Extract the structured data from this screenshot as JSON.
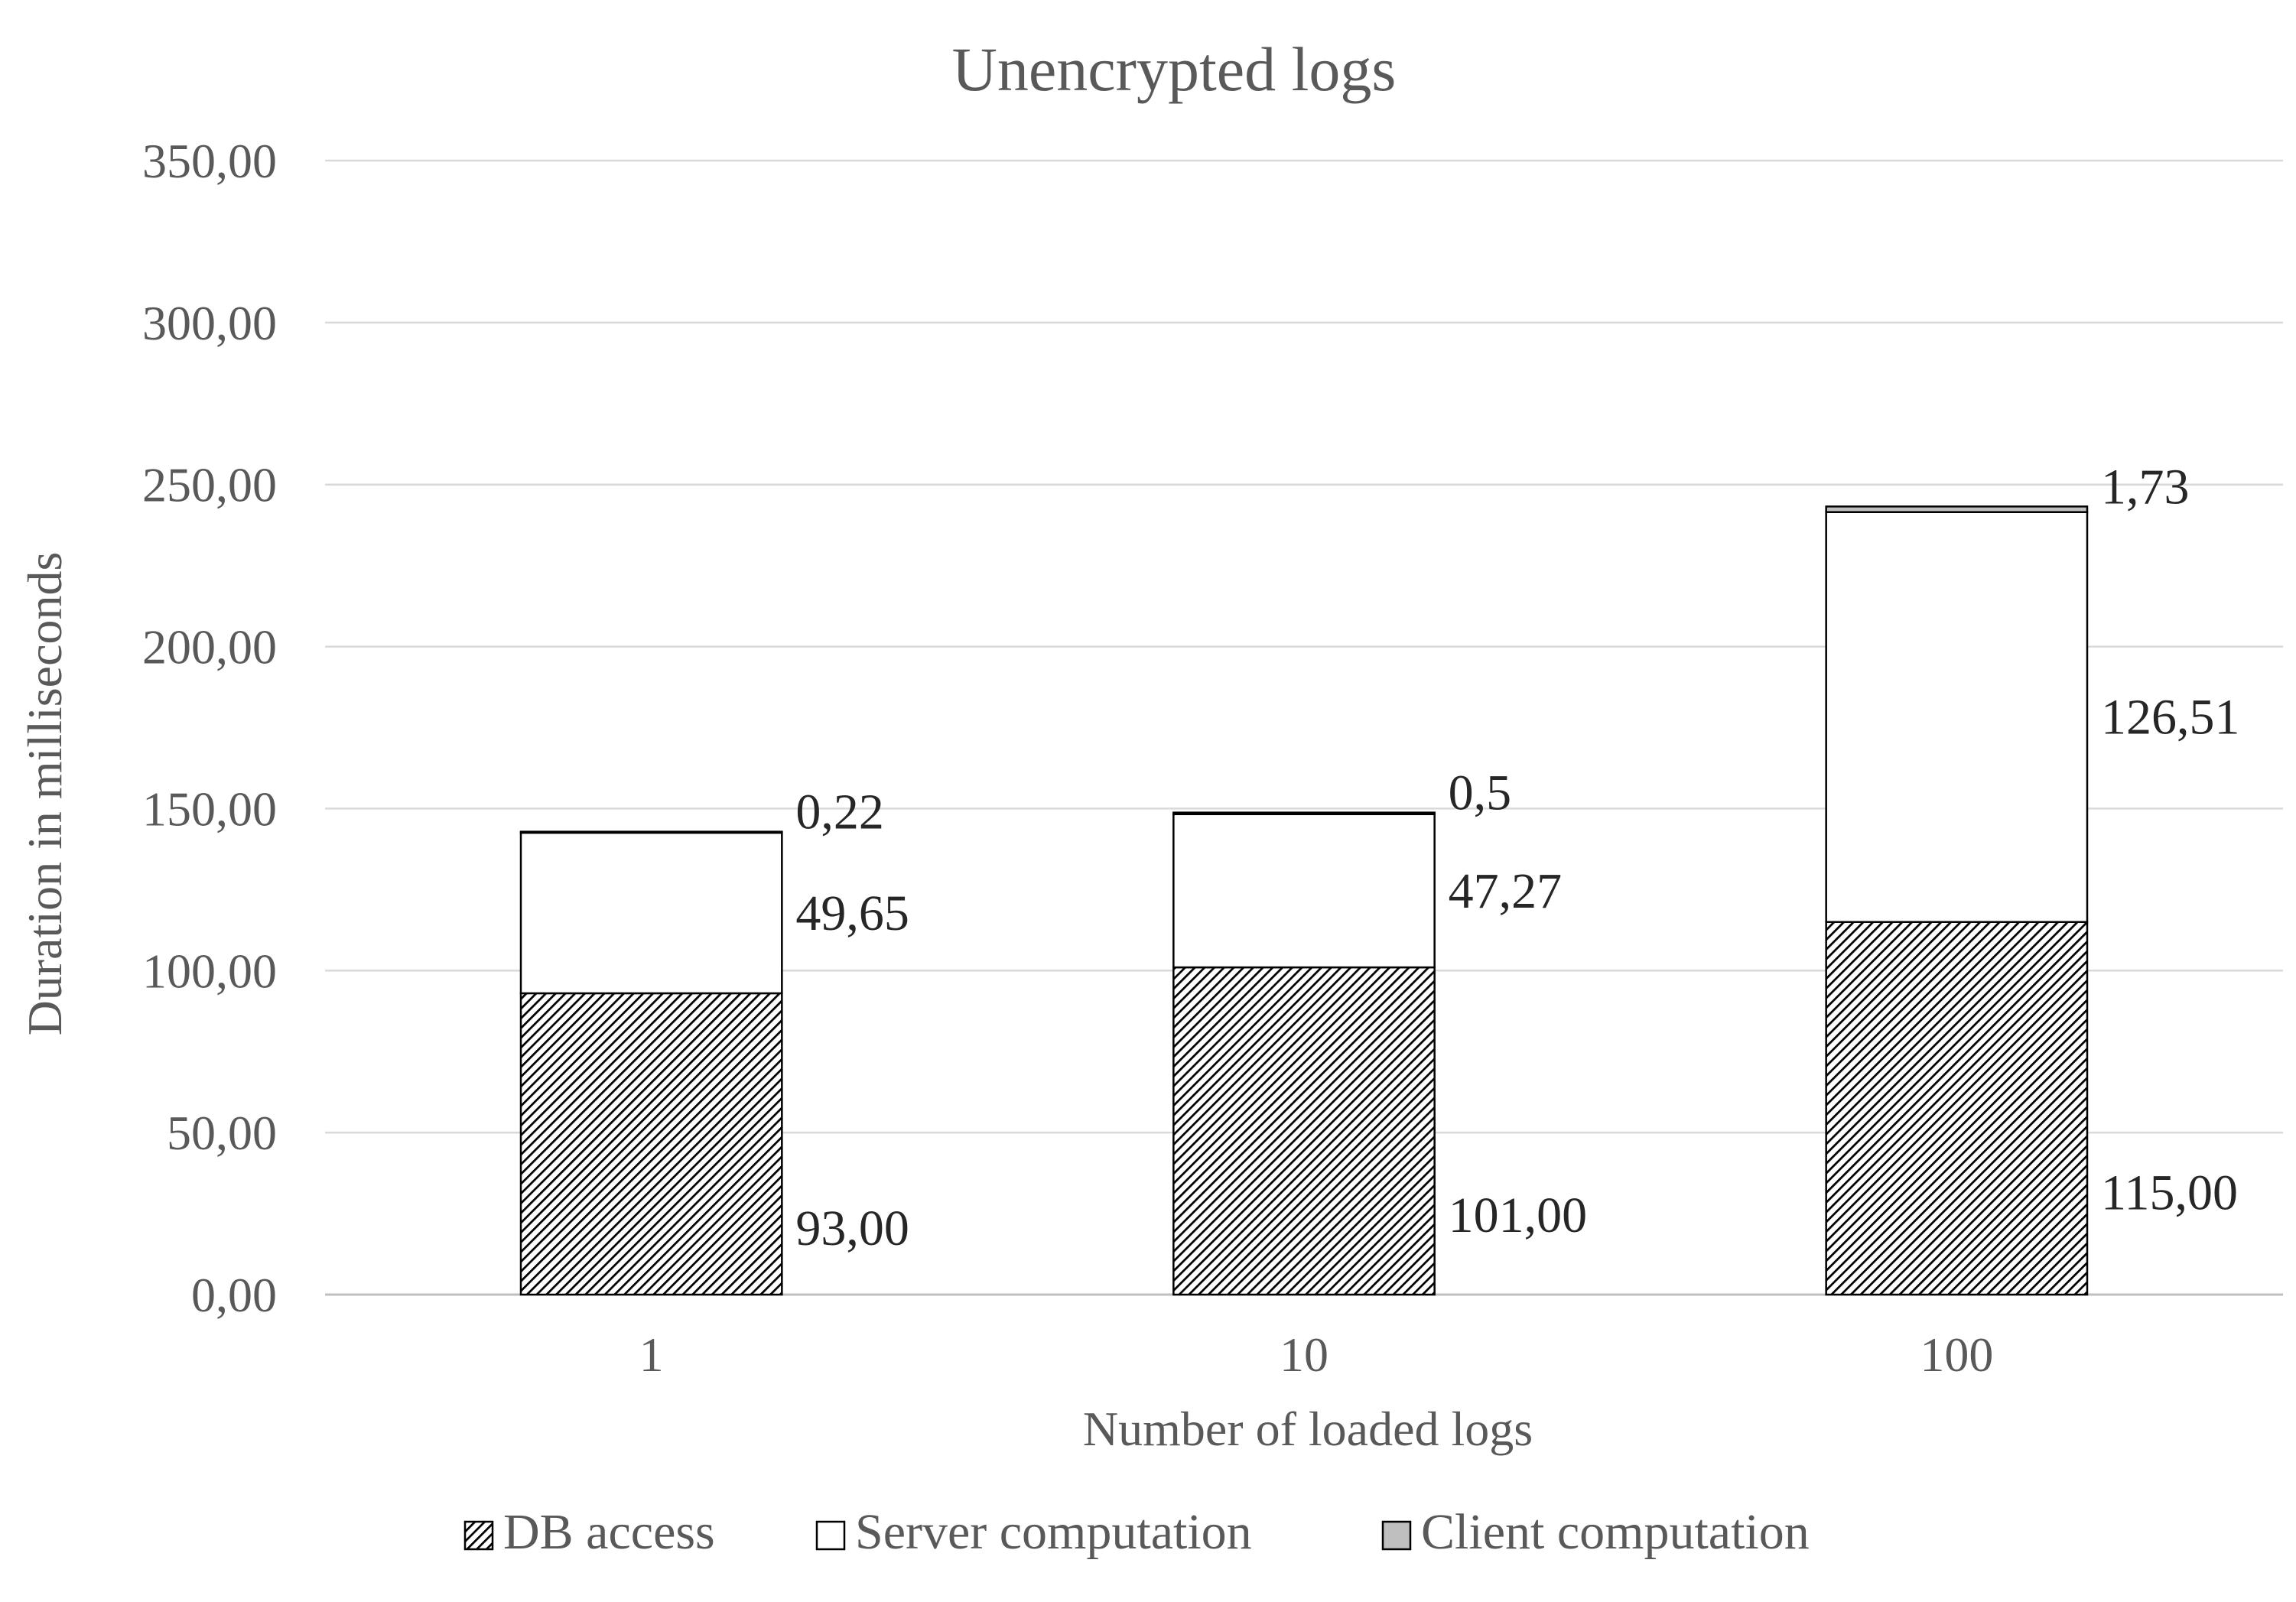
{
  "chart_data": {
    "type": "bar",
    "stacked": true,
    "title": "Unencrypted logs",
    "xlabel": "Number of loaded logs",
    "ylabel": "Duration in milliseconds",
    "categories": [
      "1",
      "10",
      "100"
    ],
    "ylim": [
      0,
      350
    ],
    "yticks": [
      0,
      50,
      100,
      150,
      200,
      250,
      300,
      350
    ],
    "ytick_labels": [
      "0,00",
      "50,00",
      "100,00",
      "150,00",
      "200,00",
      "250,00",
      "300,00",
      "350,00"
    ],
    "grid": true,
    "legend_position": "bottom",
    "series": [
      {
        "name": "DB access",
        "values": [
          93.0,
          101.0,
          115.0
        ],
        "labels": [
          "93,00",
          "101,00",
          "115,00"
        ],
        "fill": "hatch",
        "color": "#000000"
      },
      {
        "name": "Server computation",
        "values": [
          49.65,
          47.27,
          126.51
        ],
        "labels": [
          "49,65",
          "47,27",
          "126,51"
        ],
        "fill": "solid",
        "color": "#ffffff"
      },
      {
        "name": "Client computation",
        "values": [
          0.22,
          0.5,
          1.73
        ],
        "labels": [
          "0,22",
          "0,5",
          "1,73"
        ],
        "fill": "solid",
        "color": "#bfbfbf"
      }
    ]
  }
}
